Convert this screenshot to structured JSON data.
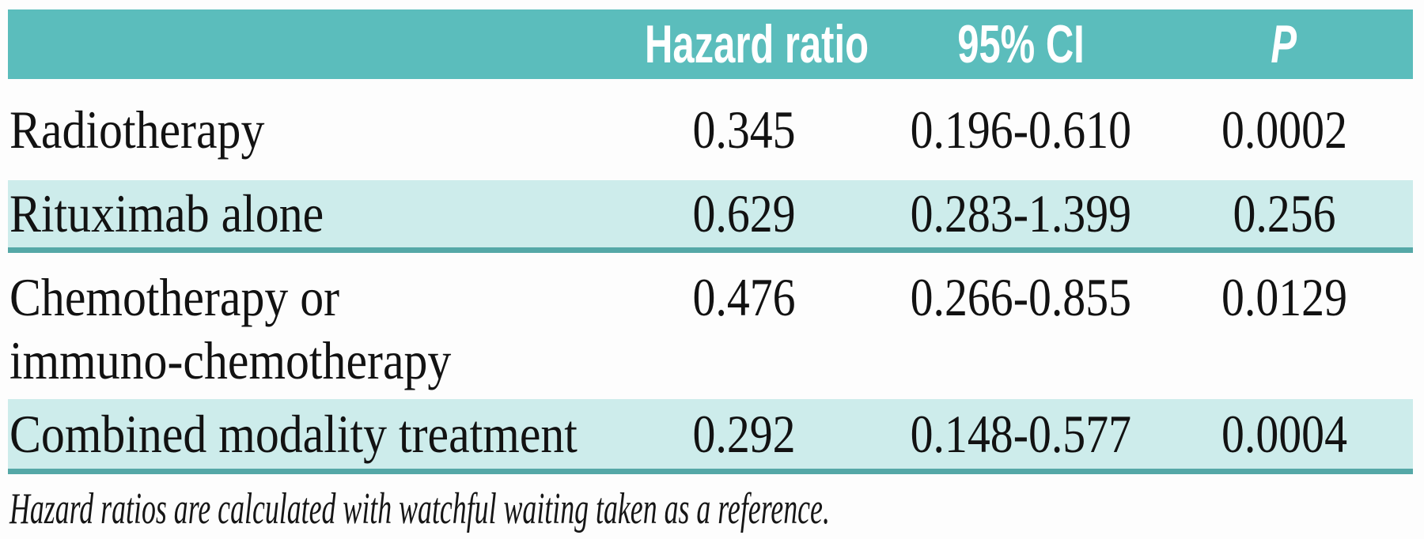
{
  "table": {
    "columns": [
      "",
      "Hazard ratio",
      "95% CI",
      "P"
    ],
    "rows": [
      {
        "label_lines": [
          "Radiotherapy"
        ],
        "hazard_ratio": "0.345",
        "ci": "0.196-0.610",
        "p": "0.0002"
      },
      {
        "label_lines": [
          "Rituximab alone"
        ],
        "hazard_ratio": "0.629",
        "ci": "0.283-1.399",
        "p": "0.256"
      },
      {
        "label_lines": [
          "Chemotherapy or",
          "immuno-chemotherapy"
        ],
        "hazard_ratio": "0.476",
        "ci": "0.266-0.855",
        "p": "0.0129"
      },
      {
        "label_lines": [
          "Combined modality treatment"
        ],
        "hazard_ratio": "0.292",
        "ci": "0.148-0.577",
        "p": "0.0004"
      }
    ],
    "footnote": "Hazard ratios are calculated with watchful waiting taken as a reference.",
    "reference_category": "watchful waiting"
  },
  "colors": {
    "header_background": "#5bbdbc",
    "striped_row_background": "#cdeceb",
    "row_rule": "#55a8a7",
    "header_text": "#ffffff",
    "body_text": "#121212"
  }
}
